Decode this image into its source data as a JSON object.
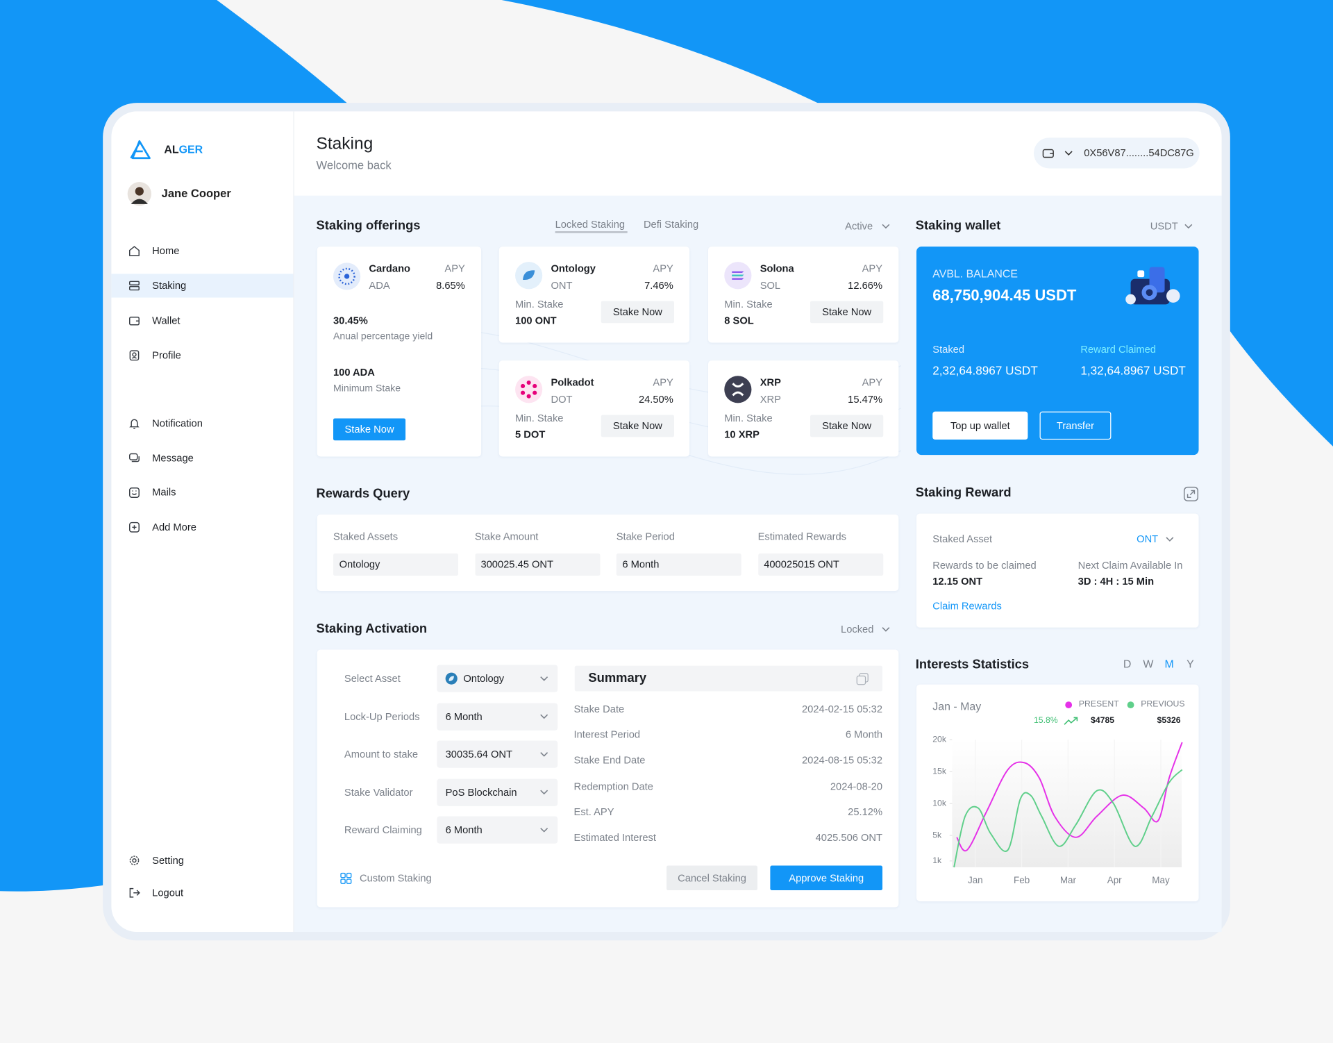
{
  "brand": {
    "prefix": "AL",
    "suffix": "GER"
  },
  "user": {
    "name": "Jane Cooper"
  },
  "nav": {
    "main": [
      "Home",
      "Staking",
      "Wallet",
      "Profile"
    ],
    "active": 1,
    "secondary": [
      "Notification",
      "Message",
      "Mails",
      "Add More"
    ],
    "bottom": [
      "Setting",
      "Logout"
    ]
  },
  "header": {
    "title": "Staking",
    "subtitle": "Welcome back",
    "wallet": "0X56V87........54DC87G"
  },
  "offerings": {
    "title": "Staking offerings",
    "tabs": [
      "Locked Staking",
      "Defi Staking"
    ],
    "filter": "Active",
    "apy_label": "APY",
    "min_label": "Min. Stake",
    "button": "Stake Now",
    "featured": {
      "name": "Cardano",
      "symbol": "ADA",
      "apy": "8.65%",
      "yield": "30.45%",
      "yield_label": "Anual percentage yield",
      "min": "100 ADA",
      "min_label": "Minimum Stake"
    },
    "cards": [
      {
        "name": "Ontology",
        "symbol": "ONT",
        "apy": "7.46%",
        "min": "100 ONT"
      },
      {
        "name": "Solona",
        "symbol": "SOL",
        "apy": "12.66%",
        "min": "8 SOL"
      },
      {
        "name": "Polkadot",
        "symbol": "DOT",
        "apy": "24.50%",
        "min": "5 DOT"
      },
      {
        "name": "XRP",
        "symbol": "XRP",
        "apy": "15.47%",
        "min": "10 XRP"
      }
    ]
  },
  "wallet": {
    "title": "Staking wallet",
    "currency": "USDT",
    "balance_label": "AVBL. BALANCE",
    "balance": "68,750,904.45 USDT",
    "staked_label": "Staked",
    "staked": "2,32,64.8967 USDT",
    "reward_label": "Reward Claimed",
    "reward": "1,32,64.8967 USDT",
    "buttons": [
      "Top up wallet",
      "Transfer"
    ]
  },
  "rewards_query": {
    "title": "Rewards Query",
    "fields": [
      {
        "label": "Staked Assets",
        "value": "Ontology"
      },
      {
        "label": "Stake Amount",
        "value": "300025.45 ONT"
      },
      {
        "label": "Stake Period",
        "value": "6 Month"
      },
      {
        "label": "Estimated Rewards",
        "value": "400025015 ONT"
      }
    ]
  },
  "staking_reward": {
    "title": "Staking Reward",
    "asset_label": "Staked Asset",
    "asset": "ONT",
    "claim_label": "Rewards to be claimed",
    "claim": "12.15 ONT",
    "next_label": "Next Claim Available In",
    "next": "3D : 4H : 15 Min",
    "link": "Claim Rewards"
  },
  "activation": {
    "title": "Staking Activation",
    "filter": "Locked",
    "fields": [
      {
        "label": "Select Asset",
        "value": "Ontology"
      },
      {
        "label": "Lock-Up Periods",
        "value": "6 Month"
      },
      {
        "label": "Amount to stake",
        "value": "30035.64 ONT"
      },
      {
        "label": "Stake Validator",
        "value": "PoS Blockchain"
      },
      {
        "label": "Reward Claiming",
        "value": "6 Month"
      }
    ],
    "summary": {
      "title": "Summary",
      "rows": [
        {
          "label": "Stake Date",
          "value": "2024-02-15 05:32"
        },
        {
          "label": "Interest Period",
          "value": "6 Month"
        },
        {
          "label": "Stake End Date",
          "value": "2024-08-15 05:32"
        },
        {
          "label": "Redemption Date",
          "value": "2024-08-20"
        },
        {
          "label": "Est. APY",
          "value": "25.12%"
        },
        {
          "label": "Estimated Interest",
          "value": "4025.506 ONT"
        }
      ]
    },
    "custom": "Custom Staking",
    "cancel": "Cancel Staking",
    "approve": "Approve Staking"
  },
  "interests": {
    "title": "Interests Statistics",
    "periods": [
      "D",
      "W",
      "M",
      "Y"
    ],
    "active_period": 2
  },
  "chart_data": {
    "type": "line",
    "title": "Jan - May",
    "change": "15.8%",
    "series": [
      {
        "name": "PRESENT",
        "color": "#e531e8",
        "total": "$4785",
        "x": [
          0.6,
          0.82,
          1.24,
          1.7,
          2.06,
          2.38,
          2.71,
          3.17,
          3.62,
          4.17,
          4.63,
          4.94,
          5.18,
          5.46
        ],
        "values": [
          4700,
          2700,
          8700,
          15300,
          16400,
          14000,
          8000,
          4700,
          8000,
          11300,
          9300,
          7300,
          14000,
          19600
        ]
      },
      {
        "name": "PREVIOUS",
        "color": "#5fcf8a",
        "total": "$5326",
        "x": [
          0.54,
          0.78,
          1.06,
          1.33,
          1.7,
          1.97,
          2.19,
          2.43,
          2.8,
          3.17,
          3.62,
          3.98,
          4.44,
          4.81,
          5.18,
          5.46
        ],
        "values": [
          0,
          8000,
          9300,
          5300,
          2700,
          10700,
          11300,
          8000,
          3300,
          6700,
          12000,
          10000,
          3300,
          8000,
          13300,
          15300
        ]
      }
    ],
    "xlim": [
      0.5,
      5.45
    ],
    "ylim": [
      0,
      20000
    ],
    "xticks": [
      {
        "value": 1,
        "label": "Jan"
      },
      {
        "value": 2,
        "label": "Feb"
      },
      {
        "value": 3,
        "label": "Mar"
      },
      {
        "value": 4,
        "label": "Apr"
      },
      {
        "value": 5,
        "label": "May"
      }
    ],
    "yticks": [
      {
        "value": 1000,
        "label": "1k"
      },
      {
        "value": 5000,
        "label": "5k"
      },
      {
        "value": 10000,
        "label": "10k"
      },
      {
        "value": 15000,
        "label": "15k"
      },
      {
        "value": 20000,
        "label": "20k"
      }
    ]
  }
}
